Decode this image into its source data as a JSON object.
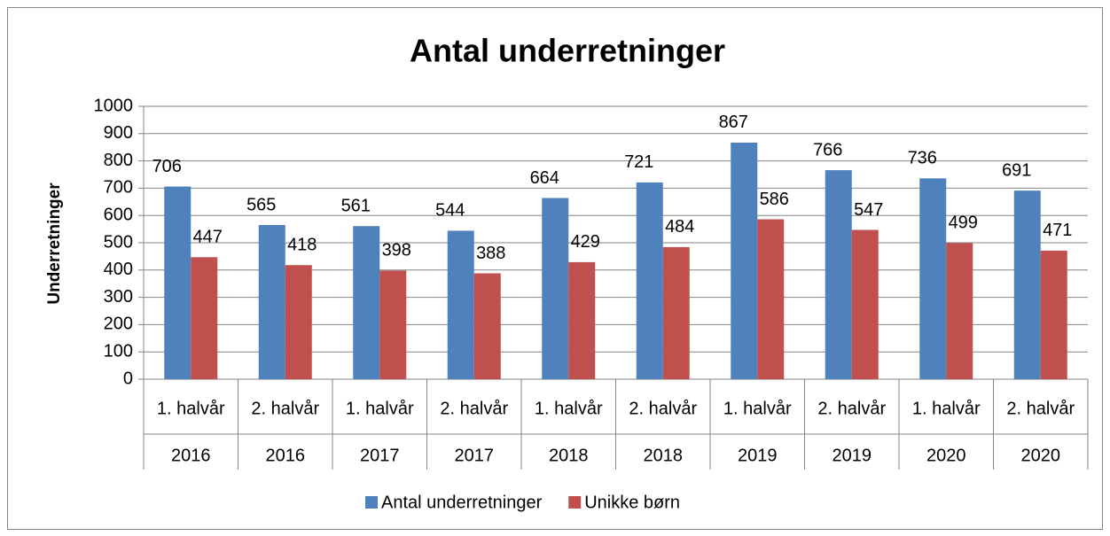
{
  "chart_data": {
    "type": "bar",
    "title": "Antal underretninger",
    "y_label": "Underretninger",
    "categories": [
      "1. halvår",
      "2. halvår",
      "1. halvår",
      "2. halvår",
      "1. halvår",
      "2. halvår",
      "1. halvår",
      "2. halvår",
      "1. halvår",
      "2. halvår"
    ],
    "years": [
      "2016",
      "2016",
      "2017",
      "2017",
      "2018",
      "2018",
      "2019",
      "2019",
      "2020",
      "2020"
    ],
    "series": [
      {
        "name": "Antal underretninger",
        "color": "#4f81bd",
        "values": [
          706,
          565,
          561,
          544,
          664,
          721,
          867,
          766,
          736,
          691
        ]
      },
      {
        "name": "Unikke børn",
        "color": "#c0504d",
        "values": [
          447,
          418,
          398,
          388,
          429,
          484,
          586,
          547,
          499,
          471
        ]
      }
    ],
    "ylim": [
      0,
      1000
    ],
    "yticks": [
      0,
      100,
      200,
      300,
      400,
      500,
      600,
      700,
      800,
      900,
      1000
    ],
    "grid": true,
    "legend": "bottom"
  }
}
